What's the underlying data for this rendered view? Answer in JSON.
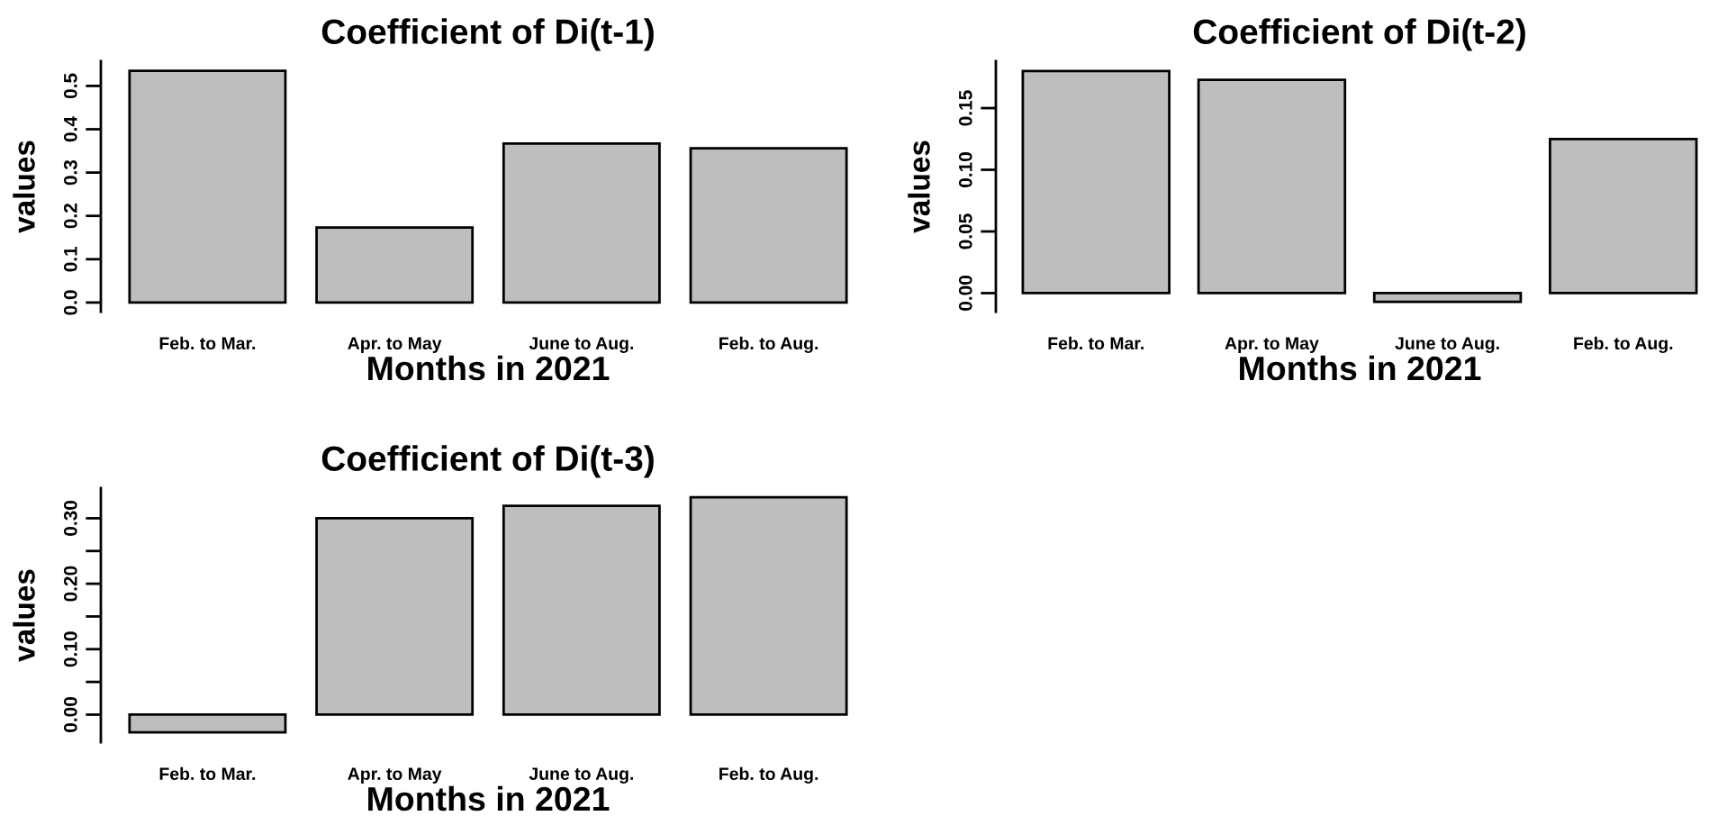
{
  "chart_data": [
    {
      "type": "bar",
      "title": "Coefficient of Di(t-1)",
      "xlabel": "Months in 2021",
      "ylabel": "values",
      "categories": [
        "Feb. to Mar.",
        "Apr. to May",
        "June to Aug.",
        "Feb. to Aug."
      ],
      "values": [
        0.535,
        0.173,
        0.367,
        0.356
      ],
      "color": "#bebebe",
      "ylim": [
        -0.021,
        0.557
      ],
      "yticks": [
        {
          "value": 0,
          "label": "0.0"
        },
        0.1,
        0.2,
        0.3,
        0.4,
        0.5
      ]
    },
    {
      "type": "bar",
      "title": "Coefficient of Di(t-2)",
      "xlabel": "Months in 2021",
      "ylabel": "values",
      "categories": [
        "Feb. to Mar.",
        "Apr. to May",
        "June to Aug.",
        "Feb. to Aug."
      ],
      "values": [
        0.18,
        0.173,
        -0.007,
        0.125
      ],
      "color": "#bebebe",
      "ylim": [
        -0.015,
        0.188
      ],
      "yticks": [
        {
          "value": 0,
          "label": "0.00"
        },
        {
          "value": 0.05,
          "label": "0.05"
        },
        {
          "value": 0.1,
          "label": "0.10"
        },
        {
          "value": 0.15,
          "label": "0.15"
        }
      ]
    },
    {
      "type": "bar",
      "title": "Coefficient of Di(t-3)",
      "xlabel": "Months in 2021",
      "ylabel": "values",
      "categories": [
        "Feb. to Mar.",
        "Apr. to May",
        "June to Aug.",
        "Feb. to Aug."
      ],
      "values": [
        -0.027,
        0.3,
        0.319,
        0.332
      ],
      "color": "#bebebe",
      "ylim": [
        -0.042,
        0.346
      ],
      "yticks": [
        {
          "value": 0,
          "label": "0.00"
        },
        {
          "value": 0.05,
          "label": null
        },
        {
          "value": 0.1,
          "label": "0.10"
        },
        {
          "value": 0.15,
          "label": null
        },
        {
          "value": 0.2,
          "label": "0.20"
        },
        {
          "value": 0.25,
          "label": null
        },
        {
          "value": 0.3,
          "label": "0.30"
        }
      ]
    }
  ]
}
